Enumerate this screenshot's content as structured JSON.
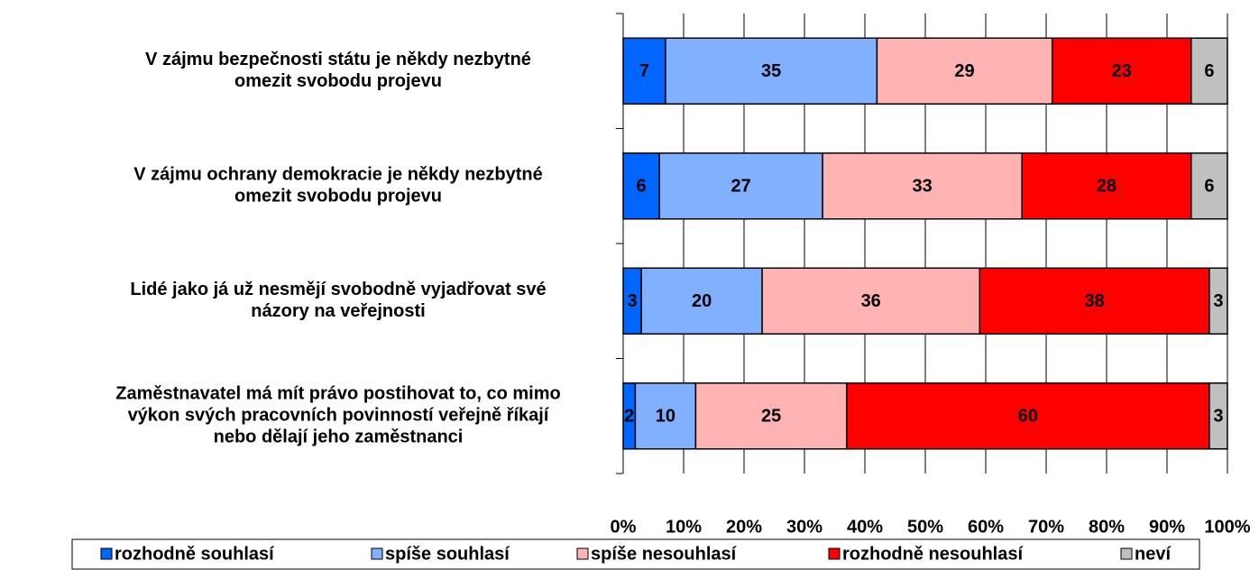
{
  "chart_data": {
    "type": "bar",
    "orientation": "horizontal",
    "stacked": true,
    "categories": [
      [
        "V zájmu bezpečnosti státu je někdy nezbytné",
        "omezit svobodu projevu"
      ],
      [
        "V zájmu ochrany demokracie je někdy nezbytné",
        "omezit svobodu projevu"
      ],
      [
        "Lidé jako já už nesmějí svobodně vyjadřovat své",
        "názory na veřejnosti"
      ],
      [
        "Zaměstnavatel má mít právo postihovat to, co mimo",
        "výkon svých pracovních povinností veřejně říkají",
        "nebo dělají jeho zaměstnanci"
      ]
    ],
    "series": [
      {
        "name": "rozhodně souhlasí",
        "color": "#0066ff",
        "values": [
          7,
          6,
          3,
          2
        ]
      },
      {
        "name": "spíše souhlasí",
        "color": "#80b0ff",
        "values": [
          35,
          27,
          20,
          10
        ]
      },
      {
        "name": "spíše nesouhlasí",
        "color": "#ffb3b3",
        "values": [
          29,
          33,
          36,
          25
        ]
      },
      {
        "name": "rozhodně nesouhlasí",
        "color": "#ff0000",
        "values": [
          23,
          28,
          38,
          60
        ]
      },
      {
        "name": "neví",
        "color": "#c0c0c0",
        "values": [
          6,
          6,
          3,
          3
        ]
      }
    ],
    "xlim": [
      0,
      100
    ],
    "xticks": [
      {
        "value": 0,
        "label": "0%"
      },
      {
        "value": 10,
        "label": "10%"
      },
      {
        "value": 20,
        "label": "20%"
      },
      {
        "value": 30,
        "label": "30%"
      },
      {
        "value": 40,
        "label": "40%"
      },
      {
        "value": 50,
        "label": "50%"
      },
      {
        "value": 60,
        "label": "60%"
      },
      {
        "value": 70,
        "label": "70%"
      },
      {
        "value": 80,
        "label": "80%"
      },
      {
        "value": 90,
        "label": "90%"
      },
      {
        "value": 100,
        "label": "100%"
      }
    ],
    "grid": true,
    "legend": "bottom"
  }
}
